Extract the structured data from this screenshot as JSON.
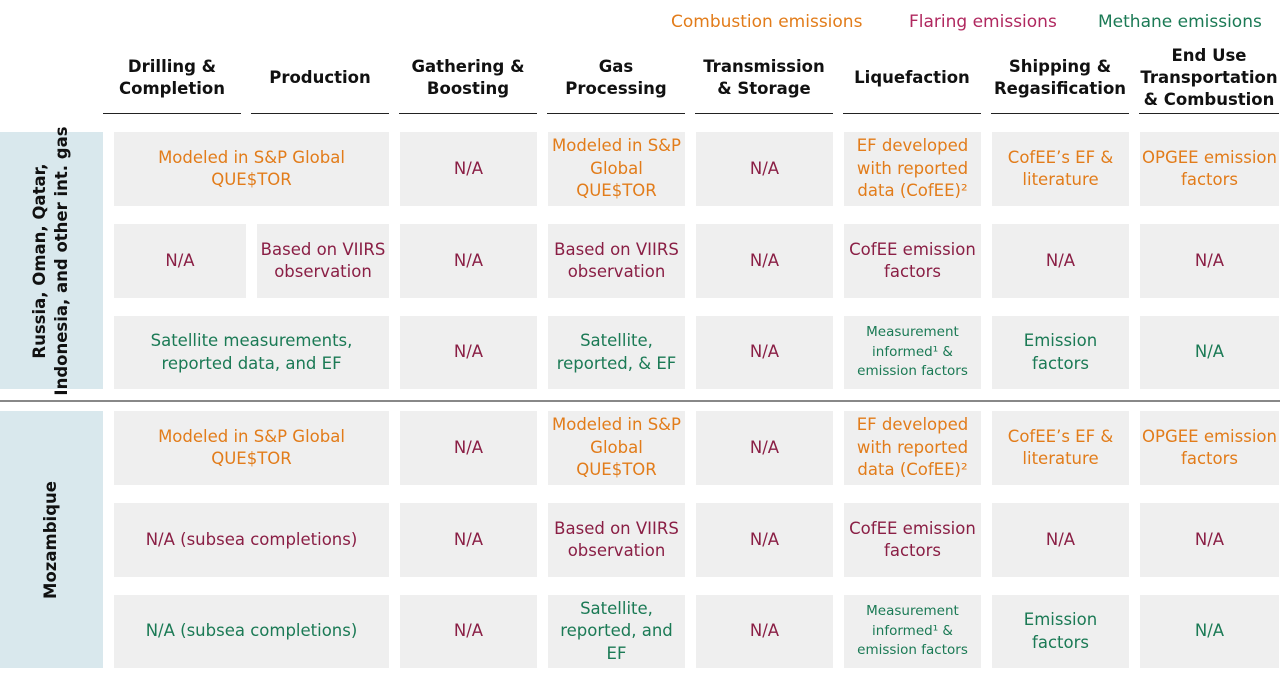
{
  "legend": {
    "combustion": "Combustion emissions",
    "flaring": "Flaring emissions",
    "methane": "Methane emissions"
  },
  "colors": {
    "combustion": "#e27c1a",
    "flaring": "#8a1f45",
    "methane": "#1b7a55",
    "cell_bg": "#efefef",
    "side_bg": "#d9e8ed"
  },
  "headers": [
    "Drilling & Completion",
    "Production",
    "Gathering & Boosting",
    "Gas Processing",
    "Transmission & Storage",
    "Liquefaction",
    "Shipping & Regasification",
    "End Use Transportation & Combustion"
  ],
  "groups": [
    {
      "label_line1": "Russia, Oman, Qatar,",
      "label_line2": "Indonesia, and other int. gas",
      "combustion": {
        "drilling_production": "Modeled in S&P Global QUE$TOR",
        "gathering": "N/A",
        "processing": "Modeled in S&P Global QUE$TOR",
        "transmission": "N/A",
        "liquefaction": "EF developed with reported data (CofEE)²",
        "shipping": "CofEE’s EF & literature",
        "end_use": "OPGEE emission factors"
      },
      "flaring": {
        "drilling": "N/A",
        "production": "Based on VIIRS observation",
        "gathering": "N/A",
        "processing": "Based on VIIRS observation",
        "transmission": "N/A",
        "liquefaction": "CofEE emission factors",
        "shipping": "N/A",
        "end_use": "N/A"
      },
      "methane": {
        "drilling_production": "Satellite measurements, reported data, and EF",
        "gathering": "N/A",
        "processing": "Satellite, reported, & EF",
        "transmission": "N/A",
        "liquefaction": "Measurement informed¹ & emission factors",
        "shipping": "Emission factors",
        "end_use": "N/A"
      }
    },
    {
      "label_line1": "Mozambique",
      "combustion": {
        "drilling_production": "Modeled in S&P Global QUE$TOR",
        "gathering": "N/A",
        "processing": "Modeled in S&P Global QUE$TOR",
        "transmission": "N/A",
        "liquefaction": "EF developed with reported data (CofEE)²",
        "shipping": "CofEE’s EF & literature",
        "end_use": "OPGEE emission factors"
      },
      "flaring": {
        "drilling_production": "N/A (subsea completions)",
        "gathering": "N/A",
        "processing": "Based on VIIRS observation",
        "transmission": "N/A",
        "liquefaction": "CofEE emission factors",
        "shipping": "N/A",
        "end_use": "N/A"
      },
      "methane": {
        "drilling_production": "N/A (subsea completions)",
        "gathering": "N/A",
        "processing": "Satellite, reported, and EF",
        "transmission": "N/A",
        "liquefaction": "Measurement informed¹ & emission factors",
        "shipping": "Emission factors",
        "end_use": "N/A"
      }
    }
  ]
}
